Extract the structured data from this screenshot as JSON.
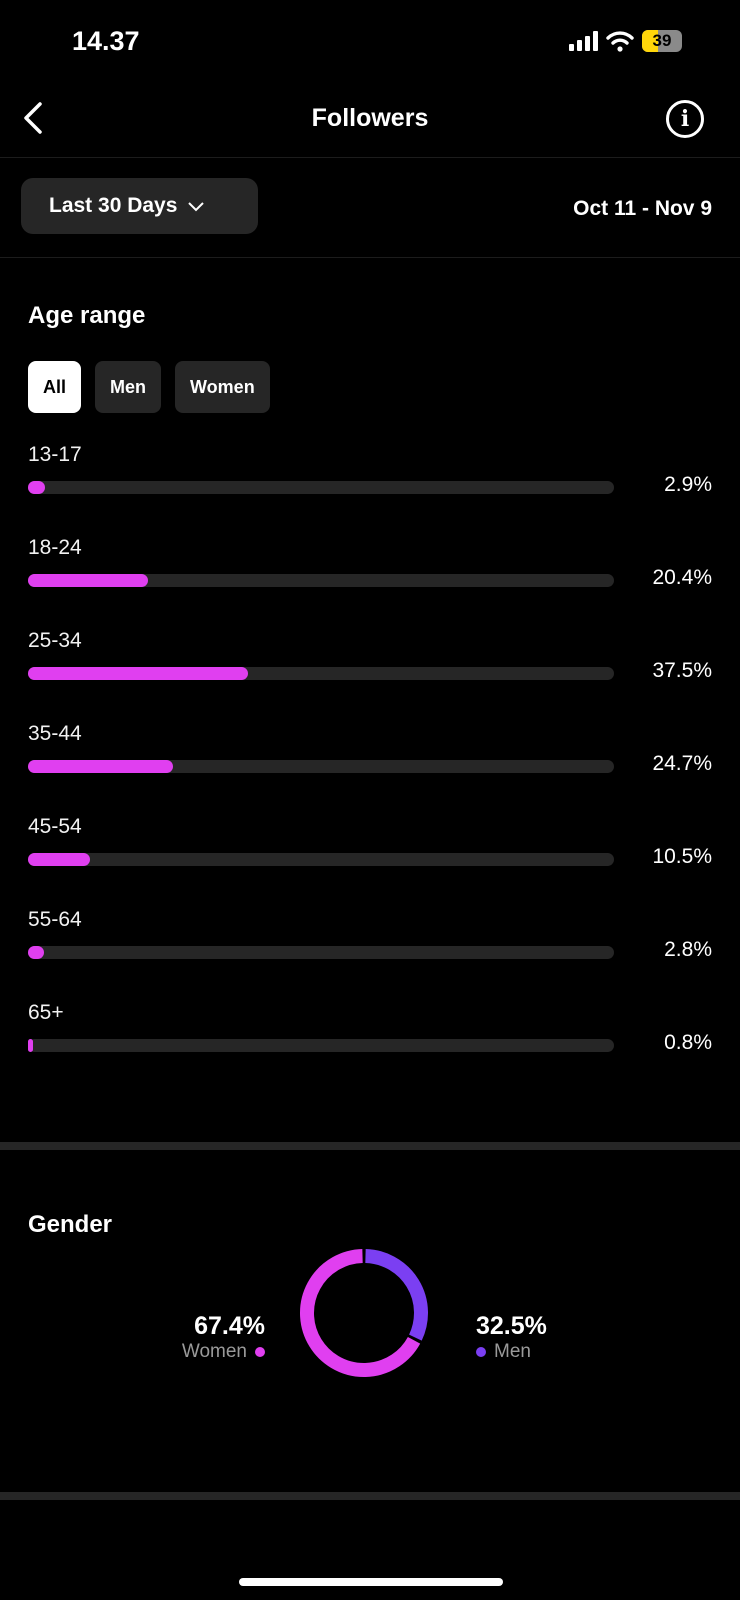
{
  "status_bar": {
    "time": "14.37",
    "battery": "39"
  },
  "header": {
    "title": "Followers"
  },
  "filter": {
    "range_label": "Last 30 Days",
    "dates": "Oct 11 - Nov 9"
  },
  "age": {
    "title": "Age range",
    "tabs": [
      {
        "label": "All",
        "active": true
      },
      {
        "label": "Men"
      },
      {
        "label": "Women"
      }
    ]
  },
  "chart_data": [
    {
      "type": "bar",
      "orientation": "horizontal",
      "categories": [
        "13-17",
        "18-24",
        "25-34",
        "35-44",
        "45-54",
        "55-64",
        "65+"
      ],
      "values": [
        2.9,
        20.4,
        37.5,
        24.7,
        10.5,
        2.8,
        0.8
      ],
      "labels": [
        "2.9%",
        "20.4%",
        "37.5%",
        "24.7%",
        "10.5%",
        "2.8%",
        "0.8%"
      ],
      "xlim": [
        0,
        100
      ],
      "color": "#e03ff0"
    },
    {
      "type": "pie",
      "donut": true,
      "title": "Gender",
      "slices": [
        {
          "name": "Women",
          "value": 67.4,
          "label": "67.4%",
          "color": "#e03ff0"
        },
        {
          "name": "Men",
          "value": 32.5,
          "label": "32.5%",
          "color": "#7b3ff2"
        }
      ]
    }
  ]
}
